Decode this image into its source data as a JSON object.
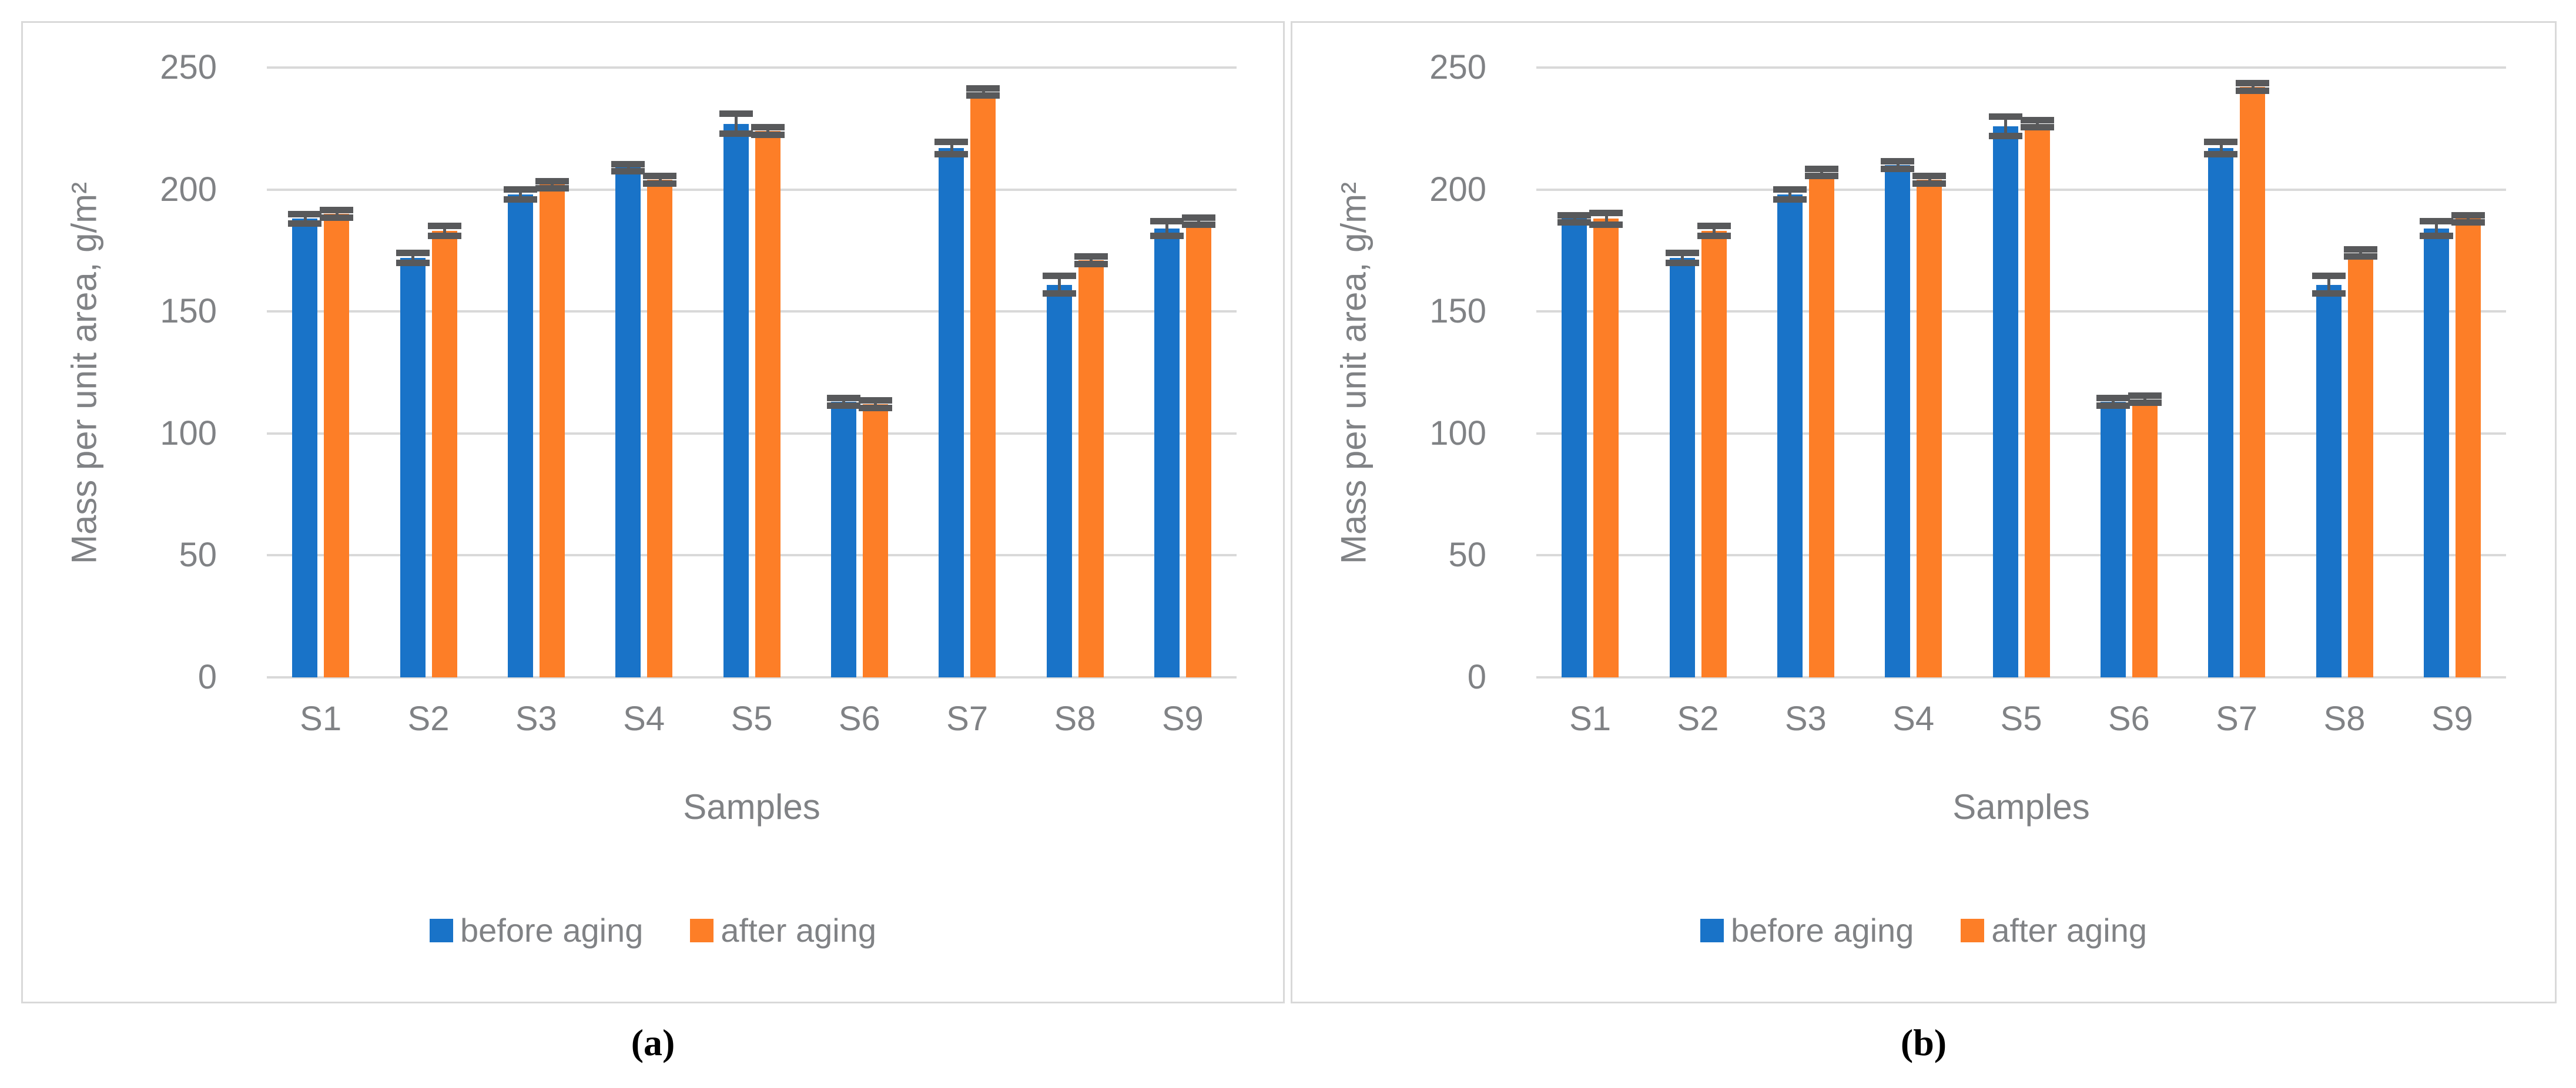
{
  "colors": {
    "before_aging": "#1973C8",
    "after_aging": "#FD7E27",
    "error_bar": "#58595B",
    "gridline": "#D9D9D9",
    "panel_border": "#D9D9D9",
    "axis_text": "#808285",
    "caption_text": "#000000"
  },
  "chart_data": [
    {
      "panel": "a",
      "caption": "(a)",
      "type": "bar",
      "title": "",
      "xlabel": "Samples",
      "ylabel": "Mass per unit area, g/m²",
      "ylim": [
        0,
        250
      ],
      "yticks": [
        0,
        50,
        100,
        150,
        200,
        250
      ],
      "grid": true,
      "legend_position": "bottom",
      "categories": [
        "S1",
        "S2",
        "S3",
        "S4",
        "S5",
        "S6",
        "S7",
        "S8",
        "S9"
      ],
      "series": [
        {
          "name": "before aging",
          "color": "#1973C8",
          "values": [
            188,
            172,
            198,
            209,
            227,
            113,
            217,
            161,
            184
          ],
          "errors": [
            2,
            2,
            2,
            1.5,
            4,
            1.5,
            2.5,
            3.5,
            3
          ]
        },
        {
          "name": "after aging",
          "color": "#FD7E27",
          "values": [
            190,
            183,
            202,
            204,
            224,
            112,
            240,
            171,
            187
          ],
          "errors": [
            1.5,
            2,
            1.5,
            1.5,
            1.5,
            1.5,
            1.5,
            1.5,
            1.5
          ]
        }
      ]
    },
    {
      "panel": "b",
      "caption": "(b)",
      "type": "bar",
      "title": "",
      "xlabel": "Samples",
      "ylabel": "Mass per unit area, g/m²",
      "ylim": [
        0,
        250
      ],
      "yticks": [
        0,
        50,
        100,
        150,
        200,
        250
      ],
      "grid": true,
      "legend_position": "bottom",
      "categories": [
        "S1",
        "S2",
        "S3",
        "S4",
        "S5",
        "S6",
        "S7",
        "S8",
        "S9"
      ],
      "series": [
        {
          "name": "before aging",
          "color": "#1973C8",
          "values": [
            188,
            172,
            198,
            210,
            226,
            113,
            217,
            161,
            184
          ],
          "errors": [
            1.5,
            2,
            2,
            1.5,
            4,
            1.5,
            2.5,
            3.5,
            3
          ]
        },
        {
          "name": "after aging",
          "color": "#FD7E27",
          "values": [
            188,
            183,
            207,
            204,
            227,
            114,
            242,
            174,
            188
          ],
          "errors": [
            2.5,
            2,
            1.5,
            1.5,
            1.5,
            1.5,
            1.5,
            1.5,
            1.5
          ]
        }
      ]
    }
  ]
}
